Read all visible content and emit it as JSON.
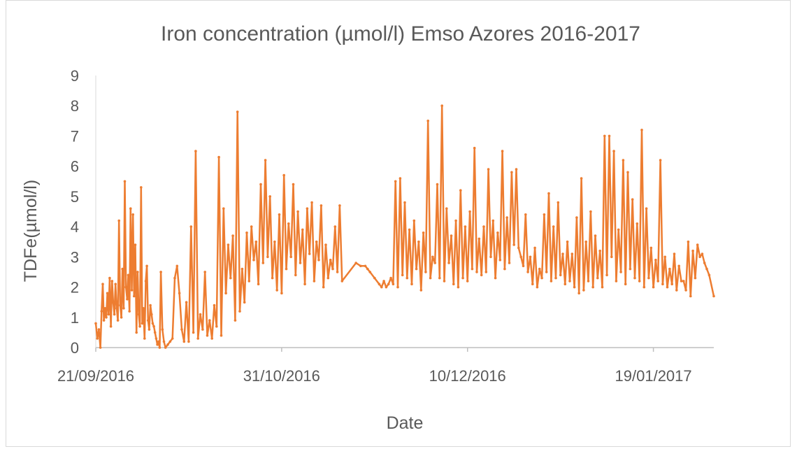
{
  "chart_data": {
    "type": "line",
    "title": "Iron concentration (µmol/l) Emso Azores 2016-2017",
    "xlabel": "Date",
    "ylabel": "TDFe(µmol/l)",
    "ylim": [
      0,
      9
    ],
    "y_ticks": [
      "0",
      "1",
      "2",
      "3",
      "4",
      "5",
      "6",
      "7",
      "8",
      "9"
    ],
    "x_ticks": [
      {
        "label": "21/09/2016",
        "date": "2016-09-21"
      },
      {
        "label": "31/10/2016",
        "date": "2016-10-31"
      },
      {
        "label": "10/12/2016",
        "date": "2016-12-10"
      },
      {
        "label": "19/01/2017",
        "date": "2017-01-19"
      }
    ],
    "xlim": [
      "2016-09-21",
      "2017-02-01"
    ],
    "grid": false,
    "color": "#ED7D31",
    "series": [
      {
        "x": [
          "2016-09-21",
          "2016-09-21",
          "2016-09-21",
          "2016-09-22",
          "2016-09-22",
          "2016-09-22",
          "2016-09-22",
          "2016-09-23",
          "2016-09-23",
          "2016-09-23",
          "2016-09-23",
          "2016-09-24",
          "2016-09-24",
          "2016-09-24",
          "2016-09-24",
          "2016-09-25",
          "2016-09-25",
          "2016-09-25",
          "2016-09-25",
          "2016-09-26",
          "2016-09-26",
          "2016-09-26",
          "2016-09-26",
          "2016-09-27",
          "2016-09-27",
          "2016-09-27",
          "2016-09-27",
          "2016-09-28",
          "2016-09-28",
          "2016-09-28",
          "2016-09-28",
          "2016-09-29",
          "2016-09-29",
          "2016-09-29",
          "2016-09-29",
          "2016-09-30",
          "2016-09-30",
          "2016-09-30",
          "2016-09-30",
          "2016-10-01",
          "2016-10-01",
          "2016-10-01",
          "2016-10-01",
          "2016-10-02",
          "2016-10-02",
          "2016-10-02",
          "2016-10-02",
          "2016-10-03",
          "2016-10-03",
          "2016-10-03",
          "2016-10-03",
          "2016-10-04",
          "2016-10-04",
          "2016-10-04",
          "2016-10-04",
          "2016-10-05",
          "2016-10-05",
          "2016-10-05",
          "2016-10-06",
          "2016-10-06",
          "2016-10-07",
          "2016-10-07",
          "2016-10-08",
          "2016-10-08",
          "2016-10-09",
          "2016-10-09",
          "2016-10-10",
          "2016-10-10",
          "2016-10-11",
          "2016-10-11",
          "2016-10-12",
          "2016-10-12",
          "2016-10-13",
          "2016-10-13",
          "2016-10-14",
          "2016-10-14",
          "2016-10-15",
          "2016-10-15",
          "2016-10-16",
          "2016-10-16",
          "2016-10-17",
          "2016-10-17",
          "2016-10-18",
          "2016-10-18",
          "2016-10-19",
          "2016-10-19",
          "2016-10-20",
          "2016-10-20",
          "2016-10-21",
          "2016-10-21",
          "2016-10-22",
          "2016-10-22",
          "2016-10-23",
          "2016-10-23",
          "2016-10-24",
          "2016-10-24",
          "2016-10-25",
          "2016-10-25",
          "2016-10-26",
          "2016-10-26",
          "2016-10-27",
          "2016-10-27",
          "2016-10-28",
          "2016-10-28",
          "2016-10-29",
          "2016-10-29",
          "2016-10-30",
          "2016-10-30",
          "2016-10-31",
          "2016-10-31",
          "2016-11-01",
          "2016-11-01",
          "2016-11-02",
          "2016-11-02",
          "2016-11-03",
          "2016-11-03",
          "2016-11-04",
          "2016-11-04",
          "2016-11-05",
          "2016-11-05",
          "2016-11-06",
          "2016-11-06",
          "2016-11-07",
          "2016-11-07",
          "2016-11-08",
          "2016-11-08",
          "2016-11-09",
          "2016-11-09",
          "2016-11-10",
          "2016-11-10",
          "2016-11-11",
          "2016-11-11",
          "2016-11-12",
          "2016-11-12",
          "2016-11-13",
          "2016-11-16",
          "2016-11-17",
          "2016-11-18",
          "2016-11-18",
          "2016-11-19",
          "2016-11-20",
          "2016-11-21",
          "2016-11-21",
          "2016-11-22",
          "2016-11-22",
          "2016-11-23",
          "2016-11-23",
          "2016-11-24",
          "2016-11-24",
          "2016-11-25",
          "2016-11-25",
          "2016-11-26",
          "2016-11-26",
          "2016-11-27",
          "2016-11-27",
          "2016-11-28",
          "2016-11-28",
          "2016-11-29",
          "2016-11-29",
          "2016-11-30",
          "2016-11-30",
          "2016-12-01",
          "2016-12-01",
          "2016-12-02",
          "2016-12-02",
          "2016-12-03",
          "2016-12-03",
          "2016-12-04",
          "2016-12-04",
          "2016-12-05",
          "2016-12-05",
          "2016-12-06",
          "2016-12-06",
          "2016-12-07",
          "2016-12-07",
          "2016-12-08",
          "2016-12-08",
          "2016-12-09",
          "2016-12-09",
          "2016-12-10",
          "2016-12-10",
          "2016-12-11",
          "2016-12-11",
          "2016-12-12",
          "2016-12-12",
          "2016-12-13",
          "2016-12-13",
          "2016-12-14",
          "2016-12-14",
          "2016-12-15",
          "2016-12-15",
          "2016-12-16",
          "2016-12-16",
          "2016-12-17",
          "2016-12-17",
          "2016-12-18",
          "2016-12-18",
          "2016-12-19",
          "2016-12-19",
          "2016-12-20",
          "2016-12-20",
          "2016-12-21",
          "2016-12-21",
          "2016-12-22",
          "2016-12-22",
          "2016-12-23",
          "2016-12-23",
          "2016-12-24",
          "2016-12-24",
          "2016-12-25",
          "2016-12-25",
          "2016-12-26",
          "2016-12-26",
          "2016-12-27",
          "2016-12-27",
          "2016-12-28",
          "2016-12-28",
          "2016-12-29",
          "2016-12-29",
          "2016-12-30",
          "2016-12-30",
          "2016-12-31",
          "2016-12-31",
          "2017-01-01",
          "2017-01-01",
          "2017-01-02",
          "2017-01-02",
          "2017-01-03",
          "2017-01-03",
          "2017-01-04",
          "2017-01-04",
          "2017-01-05",
          "2017-01-05",
          "2017-01-06",
          "2017-01-06",
          "2017-01-07",
          "2017-01-07",
          "2017-01-08",
          "2017-01-08",
          "2017-01-09",
          "2017-01-09",
          "2017-01-10",
          "2017-01-10",
          "2017-01-11",
          "2017-01-11",
          "2017-01-12",
          "2017-01-12",
          "2017-01-13",
          "2017-01-13",
          "2017-01-14",
          "2017-01-14",
          "2017-01-15",
          "2017-01-15",
          "2017-01-16",
          "2017-01-16",
          "2017-01-17",
          "2017-01-17",
          "2017-01-18",
          "2017-01-18",
          "2017-01-19",
          "2017-01-19",
          "2017-01-20",
          "2017-01-20",
          "2017-01-21",
          "2017-01-21",
          "2017-01-22",
          "2017-01-22",
          "2017-01-23",
          "2017-01-23",
          "2017-01-24",
          "2017-01-24",
          "2017-01-25",
          "2017-01-25",
          "2017-01-26",
          "2017-01-26",
          "2017-01-27",
          "2017-01-27",
          "2017-01-28",
          "2017-01-28",
          "2017-01-29",
          "2017-01-29",
          "2017-01-30",
          "2017-01-30",
          "2017-01-31",
          "2017-02-01"
        ],
        "y": [
          0.8,
          0.3,
          0.6,
          0.0,
          1.2,
          2.1,
          0.9,
          1.3,
          1.0,
          1.8,
          1.1,
          2.3,
          0.7,
          2.2,
          1.5,
          1.1,
          2.1,
          1.3,
          0.9,
          4.2,
          1.4,
          1.0,
          2.6,
          1.3,
          5.5,
          2.0,
          1.6,
          2.4,
          1.2,
          4.6,
          1.9,
          4.4,
          1.7,
          3.4,
          0.5,
          2.5,
          1.1,
          0.7,
          5.3,
          0.8,
          1.3,
          0.3,
          2.2,
          2.7,
          0.9,
          0.6,
          1.4,
          1.1,
          0.8,
          0.7,
          0.5,
          0.3,
          0.1,
          0.2,
          0.0,
          2.5,
          0.6,
          0.2,
          0.0,
          0.1,
          0.2,
          0.3,
          2.3,
          2.7,
          1.8,
          0.6,
          0.2,
          1.5,
          0.2,
          4.0,
          0.5,
          6.5,
          0.3,
          1.1,
          0.6,
          2.5,
          0.4,
          0.9,
          0.3,
          1.4,
          0.7,
          6.3,
          0.4,
          4.6,
          1.8,
          3.4,
          2.3,
          3.7,
          0.9,
          7.8,
          1.2,
          2.6,
          1.5,
          3.8,
          2.2,
          4.0,
          2.9,
          3.5,
          2.1,
          5.4,
          2.8,
          6.2,
          3.0,
          5.0,
          2.3,
          3.5,
          1.9,
          4.4,
          1.8,
          5.7,
          2.6,
          4.1,
          3.0,
          5.4,
          2.4,
          4.5,
          2.8,
          3.9,
          2.1,
          4.6,
          3.1,
          4.8,
          2.2,
          3.5,
          2.9,
          4.7,
          2.0,
          3.4,
          2.3,
          2.9,
          2.6,
          4.0,
          2.5,
          4.7,
          2.2,
          2.8,
          2.7,
          2.7,
          2.6,
          2.5,
          2.3,
          2.1,
          2.0,
          2.2,
          2.0,
          2.1,
          2.3,
          2.1,
          5.5,
          2.0,
          5.6,
          2.4,
          4.8,
          2.3,
          3.9,
          2.1,
          4.2,
          2.6,
          3.5,
          1.9,
          3.8,
          2.5,
          7.5,
          2.3,
          3.0,
          2.8,
          5.4,
          2.3,
          8.0,
          2.2,
          4.6,
          2.8,
          3.7,
          2.1,
          4.2,
          2.0,
          5.2,
          2.3,
          4.0,
          2.2,
          4.5,
          2.6,
          6.6,
          2.5,
          3.6,
          2.4,
          4.0,
          2.5,
          5.9,
          3.0,
          4.2,
          2.3,
          3.8,
          2.9,
          6.5,
          2.6,
          4.3,
          2.8,
          5.8,
          3.4,
          5.9,
          3.3,
          3.0,
          2.7,
          4.4,
          2.5,
          3.0,
          2.1,
          3.3,
          2.0,
          2.6,
          2.3,
          4.4,
          2.5,
          5.1,
          2.2,
          4.0,
          2.3,
          4.8,
          2.4,
          3.1,
          2.1,
          3.5,
          2.2,
          3.1,
          2.0,
          4.3,
          1.8,
          5.6,
          1.9,
          3.5,
          2.2,
          4.5,
          2.0,
          3.7,
          2.3,
          3.2,
          2.0,
          7.0,
          2.4,
          7.0,
          3.0,
          6.5,
          2.2,
          3.9,
          2.5,
          6.2,
          2.1,
          5.8,
          2.6,
          4.9,
          2.3,
          4.1,
          2.2,
          7.2,
          2.0,
          4.6,
          2.3,
          3.3,
          2.0,
          2.9,
          2.2,
          6.2,
          2.1,
          3.0,
          2.0,
          2.6,
          2.1,
          3.1,
          1.9,
          2.7,
          2.2,
          2.2,
          1.9,
          3.5,
          1.7,
          3.2,
          2.3,
          3.4,
          3.0,
          3.1,
          2.8,
          2.6,
          2.4,
          1.7
        ]
      }
    ]
  }
}
